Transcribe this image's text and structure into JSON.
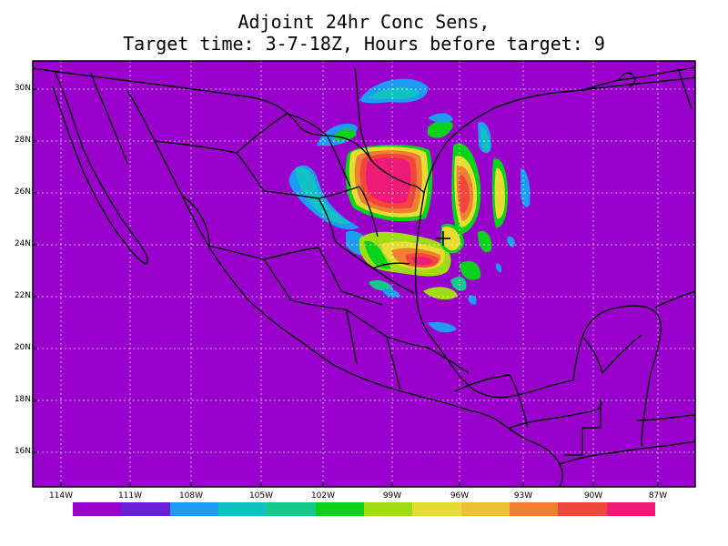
{
  "title": {
    "line1": "Adjoint 24hr Conc Sens,",
    "line2": "Target time: 3-7-18Z, Hours before target: 9"
  },
  "map": {
    "background_color": "#9900cc",
    "target_marker": "+",
    "lat_labels": [
      "30N",
      "28N",
      "26N",
      "24N",
      "22N",
      "20N",
      "18N",
      "16N"
    ],
    "lon_labels": [
      "114W",
      "111W",
      "108W",
      "105W",
      "102W",
      "99W",
      "96W",
      "93W",
      "90W",
      "87W"
    ]
  },
  "colorbar": {
    "colors": [
      "#9900cc",
      "#6a1fd8",
      "#1e9cf2",
      "#12c2c2",
      "#12c88a",
      "#0ad21a",
      "#a0dc14",
      "#e6dc32",
      "#ebc332",
      "#f07f32",
      "#f0463c",
      "#ed1a78"
    ]
  }
}
